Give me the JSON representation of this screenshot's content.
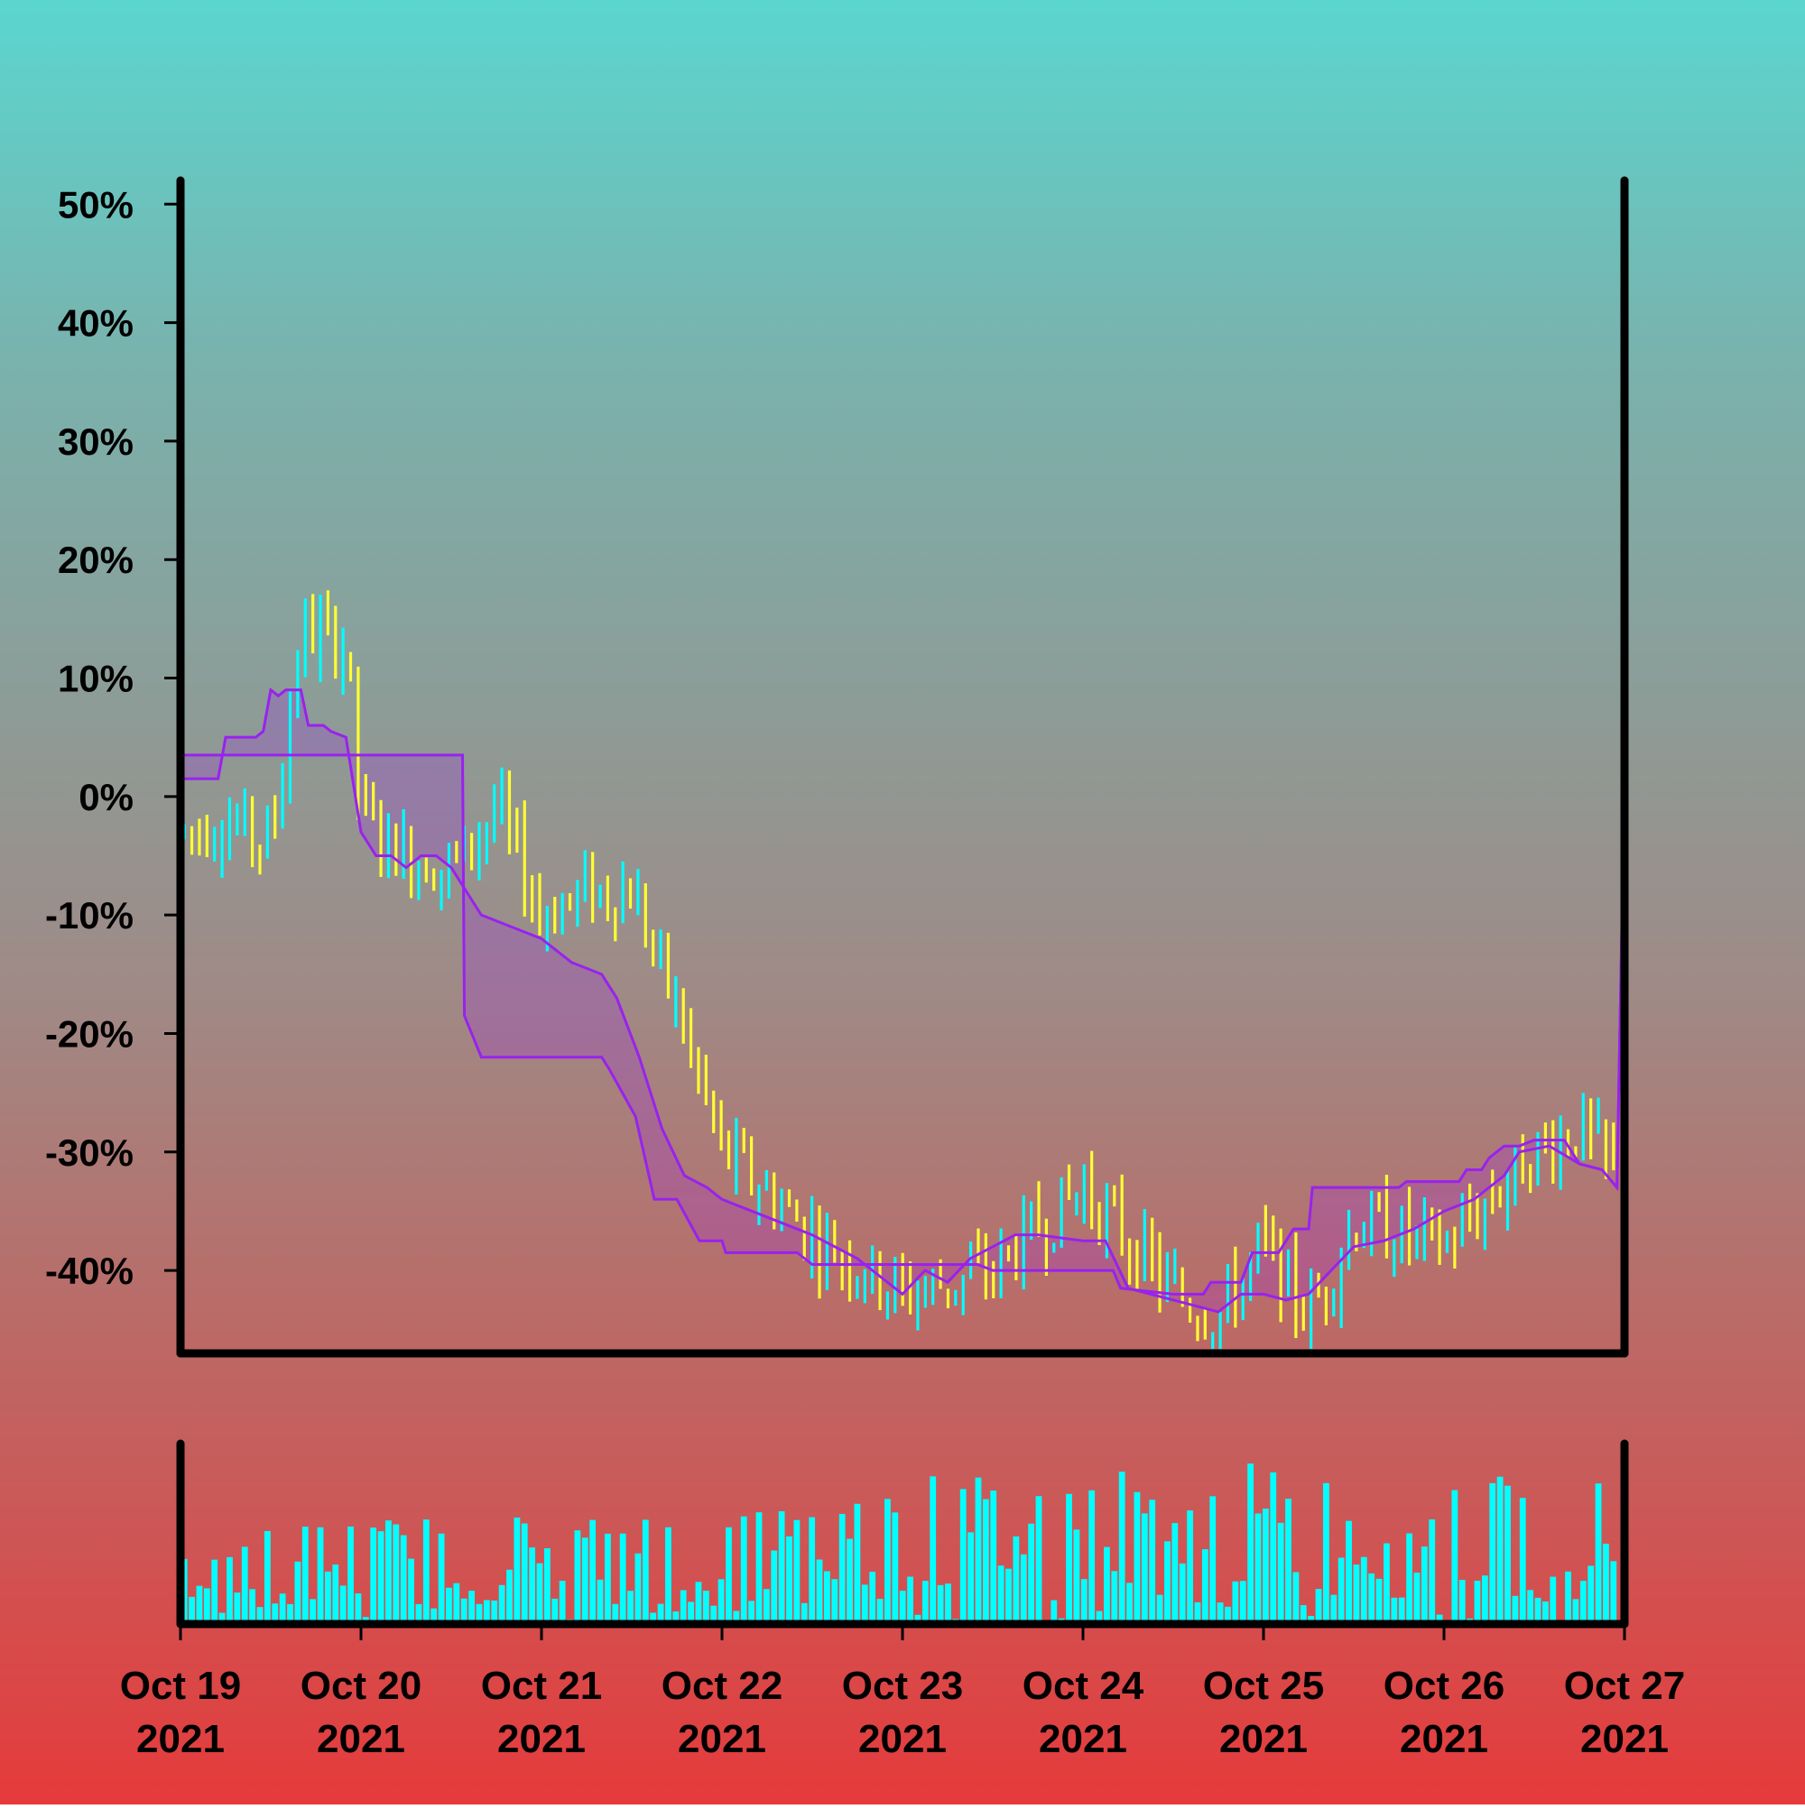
{
  "chart_data": [
    {
      "type": "ohlc",
      "ylabel_format": "percent",
      "ylim": [
        -47,
        52
      ],
      "yticks": [
        50,
        40,
        30,
        20,
        10,
        0,
        -10,
        -20,
        -30,
        -40
      ],
      "ytick_labels": [
        "50%",
        "40%",
        "30%",
        "20%",
        "10%",
        "0%",
        "-10%",
        "-20%",
        "-30%",
        "-40%"
      ],
      "x_range": [
        "2021-10-19",
        "2021-10-27"
      ],
      "up_color": "#00ffff",
      "down_color": "#ffff33",
      "price_path": [
        [
          "2021-10-19 00:00",
          -3
        ],
        [
          "2021-10-19 06:00",
          -2
        ],
        [
          "2021-10-19 12:00",
          -4
        ],
        [
          "2021-10-19 16:00",
          14
        ],
        [
          "2021-10-19 22:00",
          13
        ],
        [
          "2021-10-20 00:00",
          -2
        ],
        [
          "2021-10-20 06:00",
          -5
        ],
        [
          "2021-10-20 12:00",
          -6
        ],
        [
          "2021-10-20 18:00",
          -1
        ],
        [
          "2021-10-21 00:00",
          -10
        ],
        [
          "2021-10-21 06:00",
          -8
        ],
        [
          "2021-10-21 12:00",
          -8
        ],
        [
          "2021-10-21 18:00",
          -18
        ],
        [
          "2021-10-22 00:00",
          -30
        ],
        [
          "2021-10-22 12:00",
          -37
        ],
        [
          "2021-10-23 00:00",
          -42
        ],
        [
          "2021-10-23 12:00",
          -40
        ],
        [
          "2021-10-24 00:00",
          -33
        ],
        [
          "2021-10-24 12:00",
          -42
        ],
        [
          "2021-10-24 18:00",
          -44
        ],
        [
          "2021-10-25 00:00",
          -38
        ],
        [
          "2021-10-25 06:00",
          -44
        ],
        [
          "2021-10-25 12:00",
          -36
        ],
        [
          "2021-10-26 00:00",
          -38
        ],
        [
          "2021-10-26 12:00",
          -30
        ],
        [
          "2021-10-26 18:00",
          -28
        ],
        [
          "2021-10-27 00:00",
          -33
        ]
      ],
      "band_color": "#9922ee",
      "band_upper": [
        [
          "2021-10-19 00:00",
          3.5
        ],
        [
          "2021-10-20 13:30",
          3.5
        ],
        [
          "2021-10-20 13:45",
          -18.5
        ],
        [
          "2021-10-20 16:00",
          -22
        ],
        [
          "2021-10-21 08:00",
          -22
        ],
        [
          "2021-10-21 09:00",
          -23
        ],
        [
          "2021-10-21 12:30",
          -27
        ],
        [
          "2021-10-21 15:00",
          -34
        ],
        [
          "2021-10-21 18:00",
          -34
        ],
        [
          "2021-10-21 21:00",
          -37.5
        ],
        [
          "2021-10-22 00:00",
          -37.5
        ],
        [
          "2021-10-22 00:30",
          -38.5
        ],
        [
          "2021-10-22 10:00",
          -38.5
        ],
        [
          "2021-10-22 12:00",
          -39.5
        ],
        [
          "2021-10-23 10:00",
          -39.5
        ],
        [
          "2021-10-23 12:00",
          -40
        ],
        [
          "2021-10-24 04:00",
          -40
        ],
        [
          "2021-10-24 05:00",
          -41.5
        ],
        [
          "2021-10-24 12:00",
          -42
        ],
        [
          "2021-10-24 16:00",
          -42
        ],
        [
          "2021-10-24 17:00",
          -41
        ],
        [
          "2021-10-24 21:00",
          -41
        ],
        [
          "2021-10-24 22:30",
          -38.5
        ],
        [
          "2021-10-25 02:00",
          -38.5
        ],
        [
          "2021-10-25 04:00",
          -36.5
        ],
        [
          "2021-10-25 06:00",
          -36.5
        ],
        [
          "2021-10-25 06:30",
          -33
        ],
        [
          "2021-10-25 18:00",
          -33
        ],
        [
          "2021-10-25 19:00",
          -32.5
        ],
        [
          "2021-10-26 02:00",
          -32.5
        ],
        [
          "2021-10-26 03:00",
          -31.5
        ],
        [
          "2021-10-26 05:00",
          -31.5
        ],
        [
          "2021-10-26 06:00",
          -30.5
        ],
        [
          "2021-10-26 08:00",
          -29.5
        ],
        [
          "2021-10-26 10:00",
          -29.5
        ],
        [
          "2021-10-26 12:00",
          -29
        ],
        [
          "2021-10-26 16:00",
          -29
        ],
        [
          "2021-10-26 18:00",
          -31
        ],
        [
          "2021-10-26 21:00",
          -31.5
        ],
        [
          "2021-10-26 23:00",
          -33
        ],
        [
          "2021-10-27 00:00",
          1
        ]
      ],
      "band_lower": [
        [
          "2021-10-19 00:00",
          1.5
        ],
        [
          "2021-10-19 05:00",
          1.5
        ],
        [
          "2021-10-19 06:00",
          5
        ],
        [
          "2021-10-19 10:00",
          5
        ],
        [
          "2021-10-19 11:00",
          5.5
        ],
        [
          "2021-10-19 12:00",
          9
        ],
        [
          "2021-10-19 13:00",
          8.5
        ],
        [
          "2021-10-19 14:00",
          9
        ],
        [
          "2021-10-19 16:00",
          9
        ],
        [
          "2021-10-19 17:00",
          6
        ],
        [
          "2021-10-19 19:00",
          6
        ],
        [
          "2021-10-19 20:00",
          5.5
        ],
        [
          "2021-10-19 22:00",
          5
        ],
        [
          "2021-10-20 00:00",
          -3
        ],
        [
          "2021-10-20 02:00",
          -5
        ],
        [
          "2021-10-20 04:00",
          -5
        ],
        [
          "2021-10-20 06:00",
          -6
        ],
        [
          "2021-10-20 08:00",
          -5
        ],
        [
          "2021-10-20 10:00",
          -5
        ],
        [
          "2021-10-20 12:00",
          -6
        ],
        [
          "2021-10-20 14:00",
          -8
        ],
        [
          "2021-10-20 16:00",
          -10
        ],
        [
          "2021-10-20 20:00",
          -11
        ],
        [
          "2021-10-21 00:00",
          -12
        ],
        [
          "2021-10-21 04:00",
          -14
        ],
        [
          "2021-10-21 08:00",
          -15
        ],
        [
          "2021-10-21 10:00",
          -17
        ],
        [
          "2021-10-21 13:00",
          -22
        ],
        [
          "2021-10-21 16:00",
          -28
        ],
        [
          "2021-10-21 19:00",
          -32
        ],
        [
          "2021-10-21 22:00",
          -33
        ],
        [
          "2021-10-22 00:00",
          -34
        ],
        [
          "2021-10-22 04:00",
          -35
        ],
        [
          "2021-10-22 08:00",
          -36
        ],
        [
          "2021-10-22 12:00",
          -37
        ],
        [
          "2021-10-22 18:00",
          -39
        ],
        [
          "2021-10-23 00:00",
          -42
        ],
        [
          "2021-10-23 03:00",
          -40
        ],
        [
          "2021-10-23 06:00",
          -41
        ],
        [
          "2021-10-23 09:00",
          -39
        ],
        [
          "2021-10-23 12:00",
          -38
        ],
        [
          "2021-10-23 15:00",
          -37
        ],
        [
          "2021-10-23 18:00",
          -37
        ],
        [
          "2021-10-24 00:00",
          -37.5
        ],
        [
          "2021-10-24 03:00",
          -37.5
        ],
        [
          "2021-10-24 06:00",
          -41.5
        ],
        [
          "2021-10-24 15:00",
          -43
        ],
        [
          "2021-10-24 18:00",
          -43.5
        ],
        [
          "2021-10-24 21:00",
          -42
        ],
        [
          "2021-10-25 00:00",
          -42
        ],
        [
          "2021-10-25 03:00",
          -42.5
        ],
        [
          "2021-10-25 06:00",
          -42
        ],
        [
          "2021-10-25 12:00",
          -38
        ],
        [
          "2021-10-25 16:00",
          -37.5
        ],
        [
          "2021-10-25 20:00",
          -36.5
        ],
        [
          "2021-10-26 00:00",
          -35
        ],
        [
          "2021-10-26 04:00",
          -34
        ],
        [
          "2021-10-26 08:00",
          -32
        ],
        [
          "2021-10-26 10:00",
          -30
        ],
        [
          "2021-10-26 14:00",
          -29.5
        ],
        [
          "2021-10-26 18:00",
          -31
        ],
        [
          "2021-10-26 21:00",
          -31.5
        ],
        [
          "2021-10-26 23:00",
          -33
        ],
        [
          "2021-10-27 00:00",
          1
        ]
      ]
    },
    {
      "type": "bar",
      "series_name": "volume",
      "color": "#00ffff",
      "x_range": [
        "2021-10-19",
        "2021-10-27"
      ],
      "xtick_labels": [
        [
          "Oct 19",
          "2021"
        ],
        [
          "Oct 20",
          "2021"
        ],
        [
          "Oct 21",
          "2021"
        ],
        [
          "Oct 22",
          "2021"
        ],
        [
          "Oct 23",
          "2021"
        ],
        [
          "Oct 24",
          "2021"
        ],
        [
          "Oct 25",
          "2021"
        ],
        [
          "Oct 26",
          "2021"
        ],
        [
          "Oct 27",
          "2021"
        ]
      ],
      "level_profile": [
        [
          "2021-10-19",
          0.4
        ],
        [
          "2021-10-20",
          0.4
        ],
        [
          "2021-10-21",
          0.43
        ],
        [
          "2021-10-22",
          0.42
        ],
        [
          "2021-10-23",
          0.55
        ],
        [
          "2021-10-24",
          0.6
        ],
        [
          "2021-10-25",
          0.6
        ],
        [
          "2021-10-26",
          0.55
        ],
        [
          "2021-10-27",
          0.55
        ]
      ]
    }
  ]
}
